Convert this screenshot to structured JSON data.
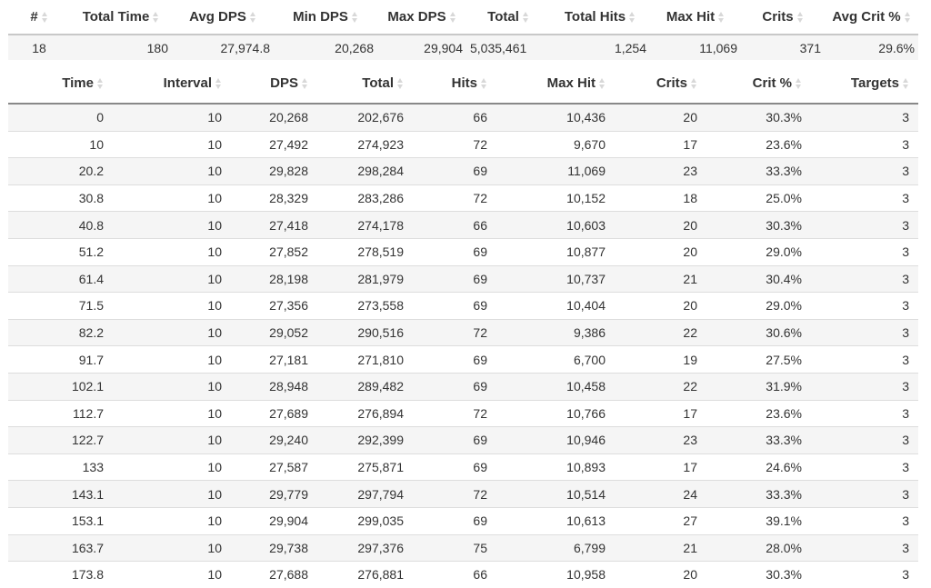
{
  "summary": {
    "headers": [
      "#",
      "Total Time",
      "Avg DPS",
      "Min DPS",
      "Max DPS",
      "Total",
      "Total Hits",
      "Max Hit",
      "Crits",
      "Avg Crit %"
    ],
    "row": [
      "18",
      "180",
      "27,974.8",
      "20,268",
      "29,904",
      "5,035,461",
      "1,254",
      "11,069",
      "371",
      "29.6%"
    ]
  },
  "table": {
    "headers": [
      "Time",
      "Interval",
      "DPS",
      "Total",
      "Hits",
      "Max Hit",
      "Crits",
      "Crit %",
      "Targets"
    ],
    "rows": [
      [
        "0",
        "10",
        "20,268",
        "202,676",
        "66",
        "10,436",
        "20",
        "30.3%",
        "3"
      ],
      [
        "10",
        "10",
        "27,492",
        "274,923",
        "72",
        "9,670",
        "17",
        "23.6%",
        "3"
      ],
      [
        "20.2",
        "10",
        "29,828",
        "298,284",
        "69",
        "11,069",
        "23",
        "33.3%",
        "3"
      ],
      [
        "30.8",
        "10",
        "28,329",
        "283,286",
        "72",
        "10,152",
        "18",
        "25.0%",
        "3"
      ],
      [
        "40.8",
        "10",
        "27,418",
        "274,178",
        "66",
        "10,603",
        "20",
        "30.3%",
        "3"
      ],
      [
        "51.2",
        "10",
        "27,852",
        "278,519",
        "69",
        "10,877",
        "20",
        "29.0%",
        "3"
      ],
      [
        "61.4",
        "10",
        "28,198",
        "281,979",
        "69",
        "10,737",
        "21",
        "30.4%",
        "3"
      ],
      [
        "71.5",
        "10",
        "27,356",
        "273,558",
        "69",
        "10,404",
        "20",
        "29.0%",
        "3"
      ],
      [
        "82.2",
        "10",
        "29,052",
        "290,516",
        "72",
        "9,386",
        "22",
        "30.6%",
        "3"
      ],
      [
        "91.7",
        "10",
        "27,181",
        "271,810",
        "69",
        "6,700",
        "19",
        "27.5%",
        "3"
      ],
      [
        "102.1",
        "10",
        "28,948",
        "289,482",
        "69",
        "10,458",
        "22",
        "31.9%",
        "3"
      ],
      [
        "112.7",
        "10",
        "27,689",
        "276,894",
        "72",
        "10,766",
        "17",
        "23.6%",
        "3"
      ],
      [
        "122.7",
        "10",
        "29,240",
        "292,399",
        "69",
        "10,946",
        "23",
        "33.3%",
        "3"
      ],
      [
        "133",
        "10",
        "27,587",
        "275,871",
        "69",
        "10,893",
        "17",
        "24.6%",
        "3"
      ],
      [
        "143.1",
        "10",
        "29,779",
        "297,794",
        "72",
        "10,514",
        "24",
        "33.3%",
        "3"
      ],
      [
        "153.1",
        "10",
        "29,904",
        "299,035",
        "69",
        "10,613",
        "27",
        "39.1%",
        "3"
      ],
      [
        "163.7",
        "10",
        "29,738",
        "297,376",
        "75",
        "6,799",
        "21",
        "28.0%",
        "3"
      ],
      [
        "173.8",
        "10",
        "27,688",
        "276,881",
        "66",
        "10,958",
        "20",
        "30.3%",
        "3"
      ]
    ]
  }
}
